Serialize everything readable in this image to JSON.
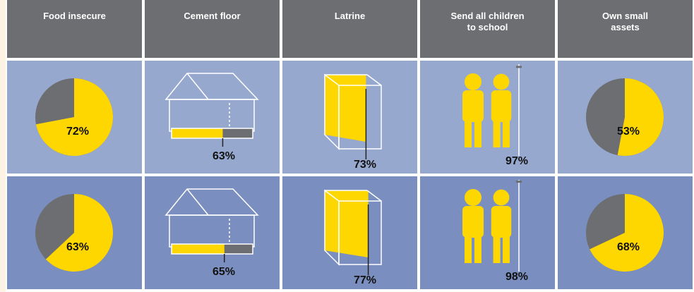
{
  "columns": [
    {
      "lines": [
        "Food insecure"
      ],
      "kind": "pie"
    },
    {
      "lines": [
        "Cement floor"
      ],
      "kind": "house"
    },
    {
      "lines": [
        "Latrine"
      ],
      "kind": "latrine"
    },
    {
      "lines": [
        "Send all children",
        "to school"
      ],
      "kind": "children"
    },
    {
      "lines": [
        "Own small",
        "assets"
      ],
      "kind": "pie"
    }
  ],
  "rows": [
    {
      "color": "#97a8cf",
      "cells": [
        {
          "value": 72,
          "label": "72%"
        },
        {
          "value": 63,
          "label": "63%"
        },
        {
          "value": 73,
          "label": "73%"
        },
        {
          "value": 97,
          "label": "97%"
        },
        {
          "value": 53,
          "label": "53%"
        }
      ]
    },
    {
      "color": "#7a8fbf",
      "cells": [
        {
          "value": 63,
          "label": "63%"
        },
        {
          "value": 65,
          "label": "65%"
        },
        {
          "value": 77,
          "label": "77%"
        },
        {
          "value": 98,
          "label": "98%"
        },
        {
          "value": 68,
          "label": "68%"
        }
      ]
    }
  ],
  "header_color": "#6d6e71",
  "fill_color": "#ffd700",
  "rest_color": "#6d6e71"
}
